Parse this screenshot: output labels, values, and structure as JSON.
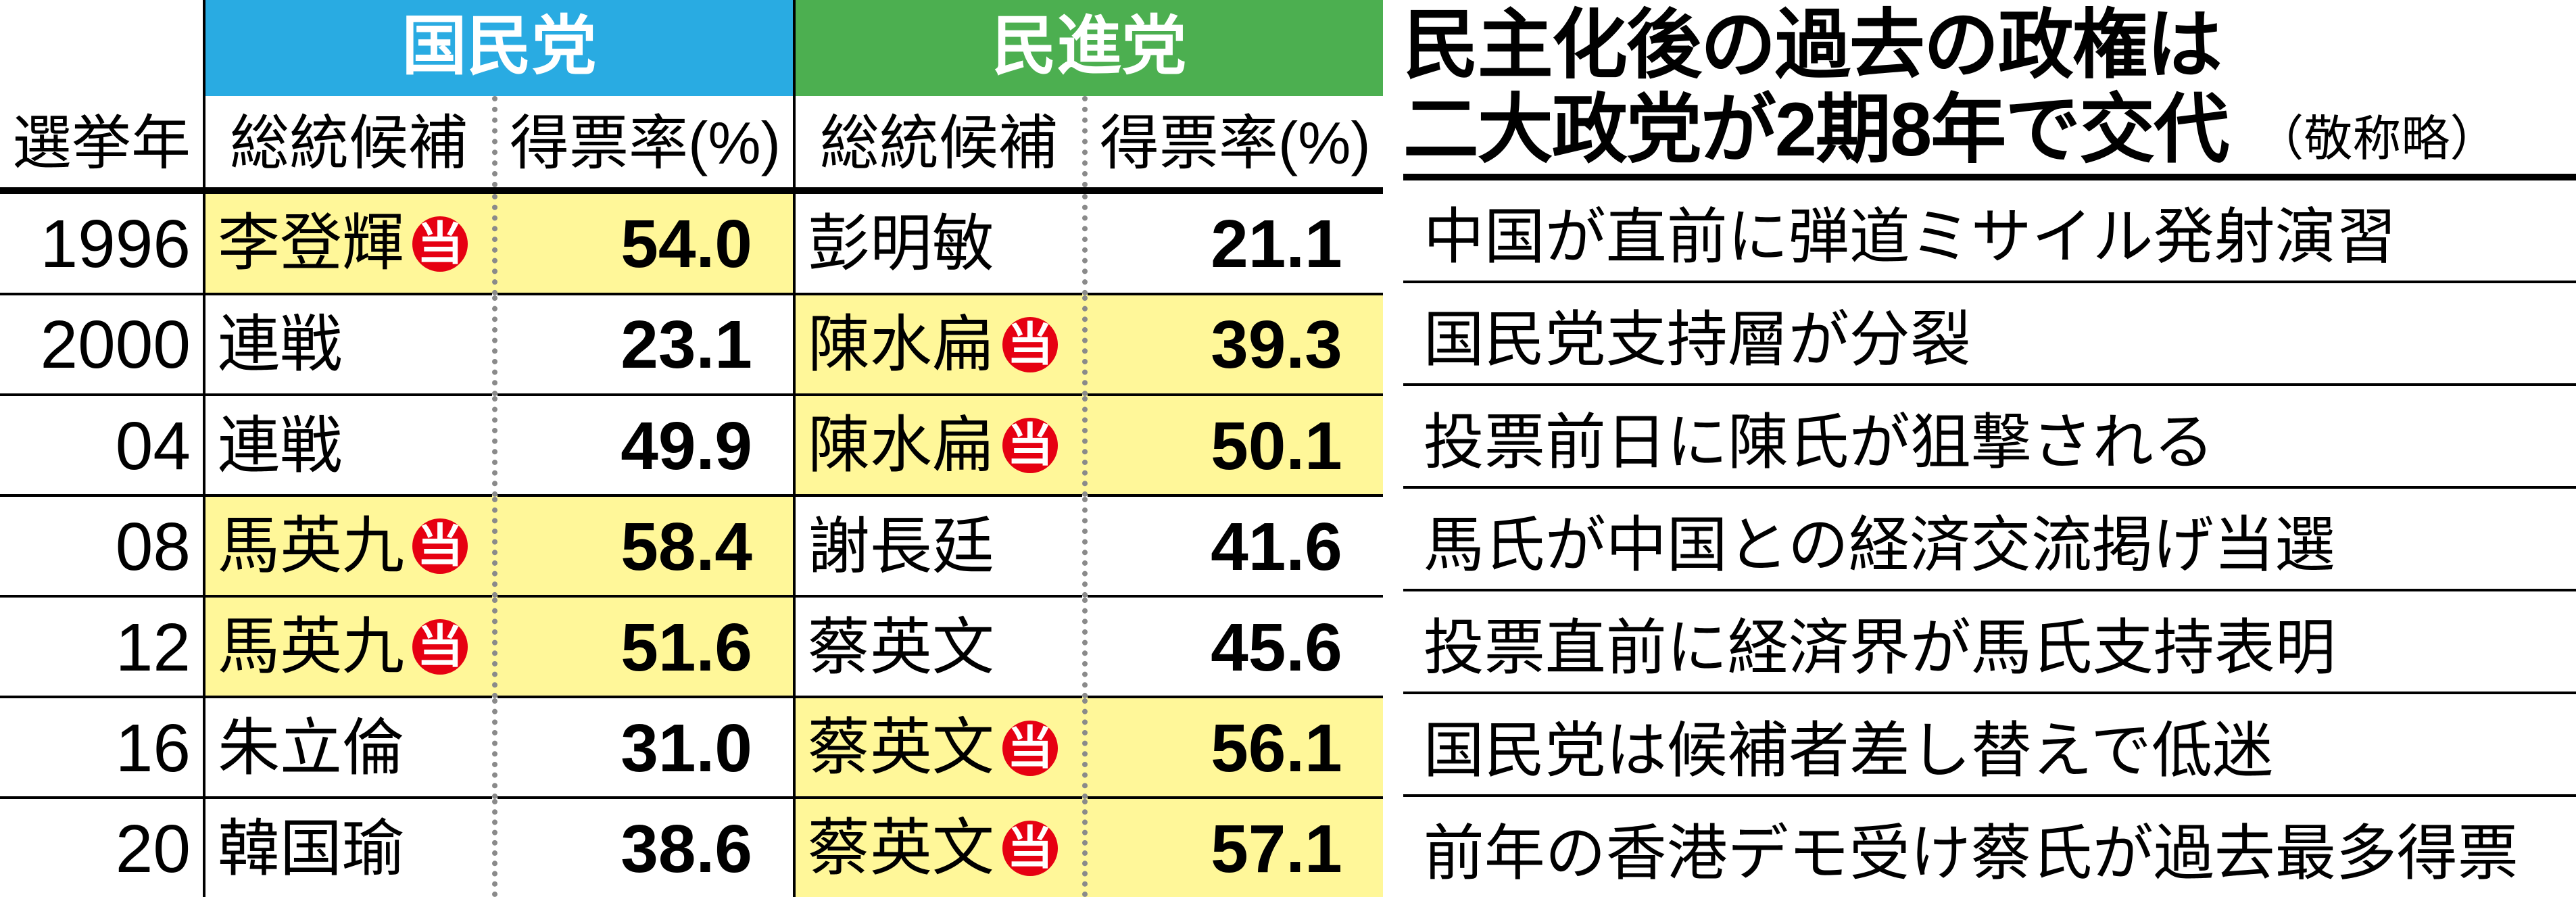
{
  "headers": {
    "year": "選挙年",
    "candidate": "総統候補",
    "voteRate": "得票率(%)",
    "parties": {
      "kmt": {
        "name": "国民党",
        "color": "#29abe2"
      },
      "dpp": {
        "name": "民進党",
        "color": "#4caf50"
      }
    }
  },
  "headline": {
    "line1": "民主化後の過去の政権は",
    "line2": "二大政党が2期8年で交代",
    "note": "（敬称略）"
  },
  "badge": "当",
  "colors": {
    "winHighlight": "#fff799",
    "badgeBg": "#e60012",
    "dottedBorder": "#8a8a8a"
  },
  "rows": [
    {
      "year": "1996",
      "kmt": {
        "name": "李登輝",
        "pct": "54.0",
        "win": true
      },
      "dpp": {
        "name": "彭明敏",
        "pct": "21.1",
        "win": false
      },
      "note": "中国が直前に弾道ミサイル発射演習"
    },
    {
      "year": "2000",
      "kmt": {
        "name": "連戦",
        "pct": "23.1",
        "win": false
      },
      "dpp": {
        "name": "陳水扁",
        "pct": "39.3",
        "win": true
      },
      "note": "国民党支持層が分裂"
    },
    {
      "year": "04",
      "kmt": {
        "name": "連戦",
        "pct": "49.9",
        "win": false
      },
      "dpp": {
        "name": "陳水扁",
        "pct": "50.1",
        "win": true
      },
      "note": "投票前日に陳氏が狙撃される"
    },
    {
      "year": "08",
      "kmt": {
        "name": "馬英九",
        "pct": "58.4",
        "win": true
      },
      "dpp": {
        "name": "謝長廷",
        "pct": "41.6",
        "win": false
      },
      "note": "馬氏が中国との経済交流掲げ当選"
    },
    {
      "year": "12",
      "kmt": {
        "name": "馬英九",
        "pct": "51.6",
        "win": true
      },
      "dpp": {
        "name": "蔡英文",
        "pct": "45.6",
        "win": false
      },
      "note": "投票直前に経済界が馬氏支持表明"
    },
    {
      "year": "16",
      "kmt": {
        "name": "朱立倫",
        "pct": "31.0",
        "win": false
      },
      "dpp": {
        "name": "蔡英文",
        "pct": "56.1",
        "win": true
      },
      "note": "国民党は候補者差し替えで低迷"
    },
    {
      "year": "20",
      "kmt": {
        "name": "韓国瑜",
        "pct": "38.6",
        "win": false
      },
      "dpp": {
        "name": "蔡英文",
        "pct": "57.1",
        "win": true
      },
      "note": "前年の香港デモ受け蔡氏が過去最多得票"
    }
  ]
}
